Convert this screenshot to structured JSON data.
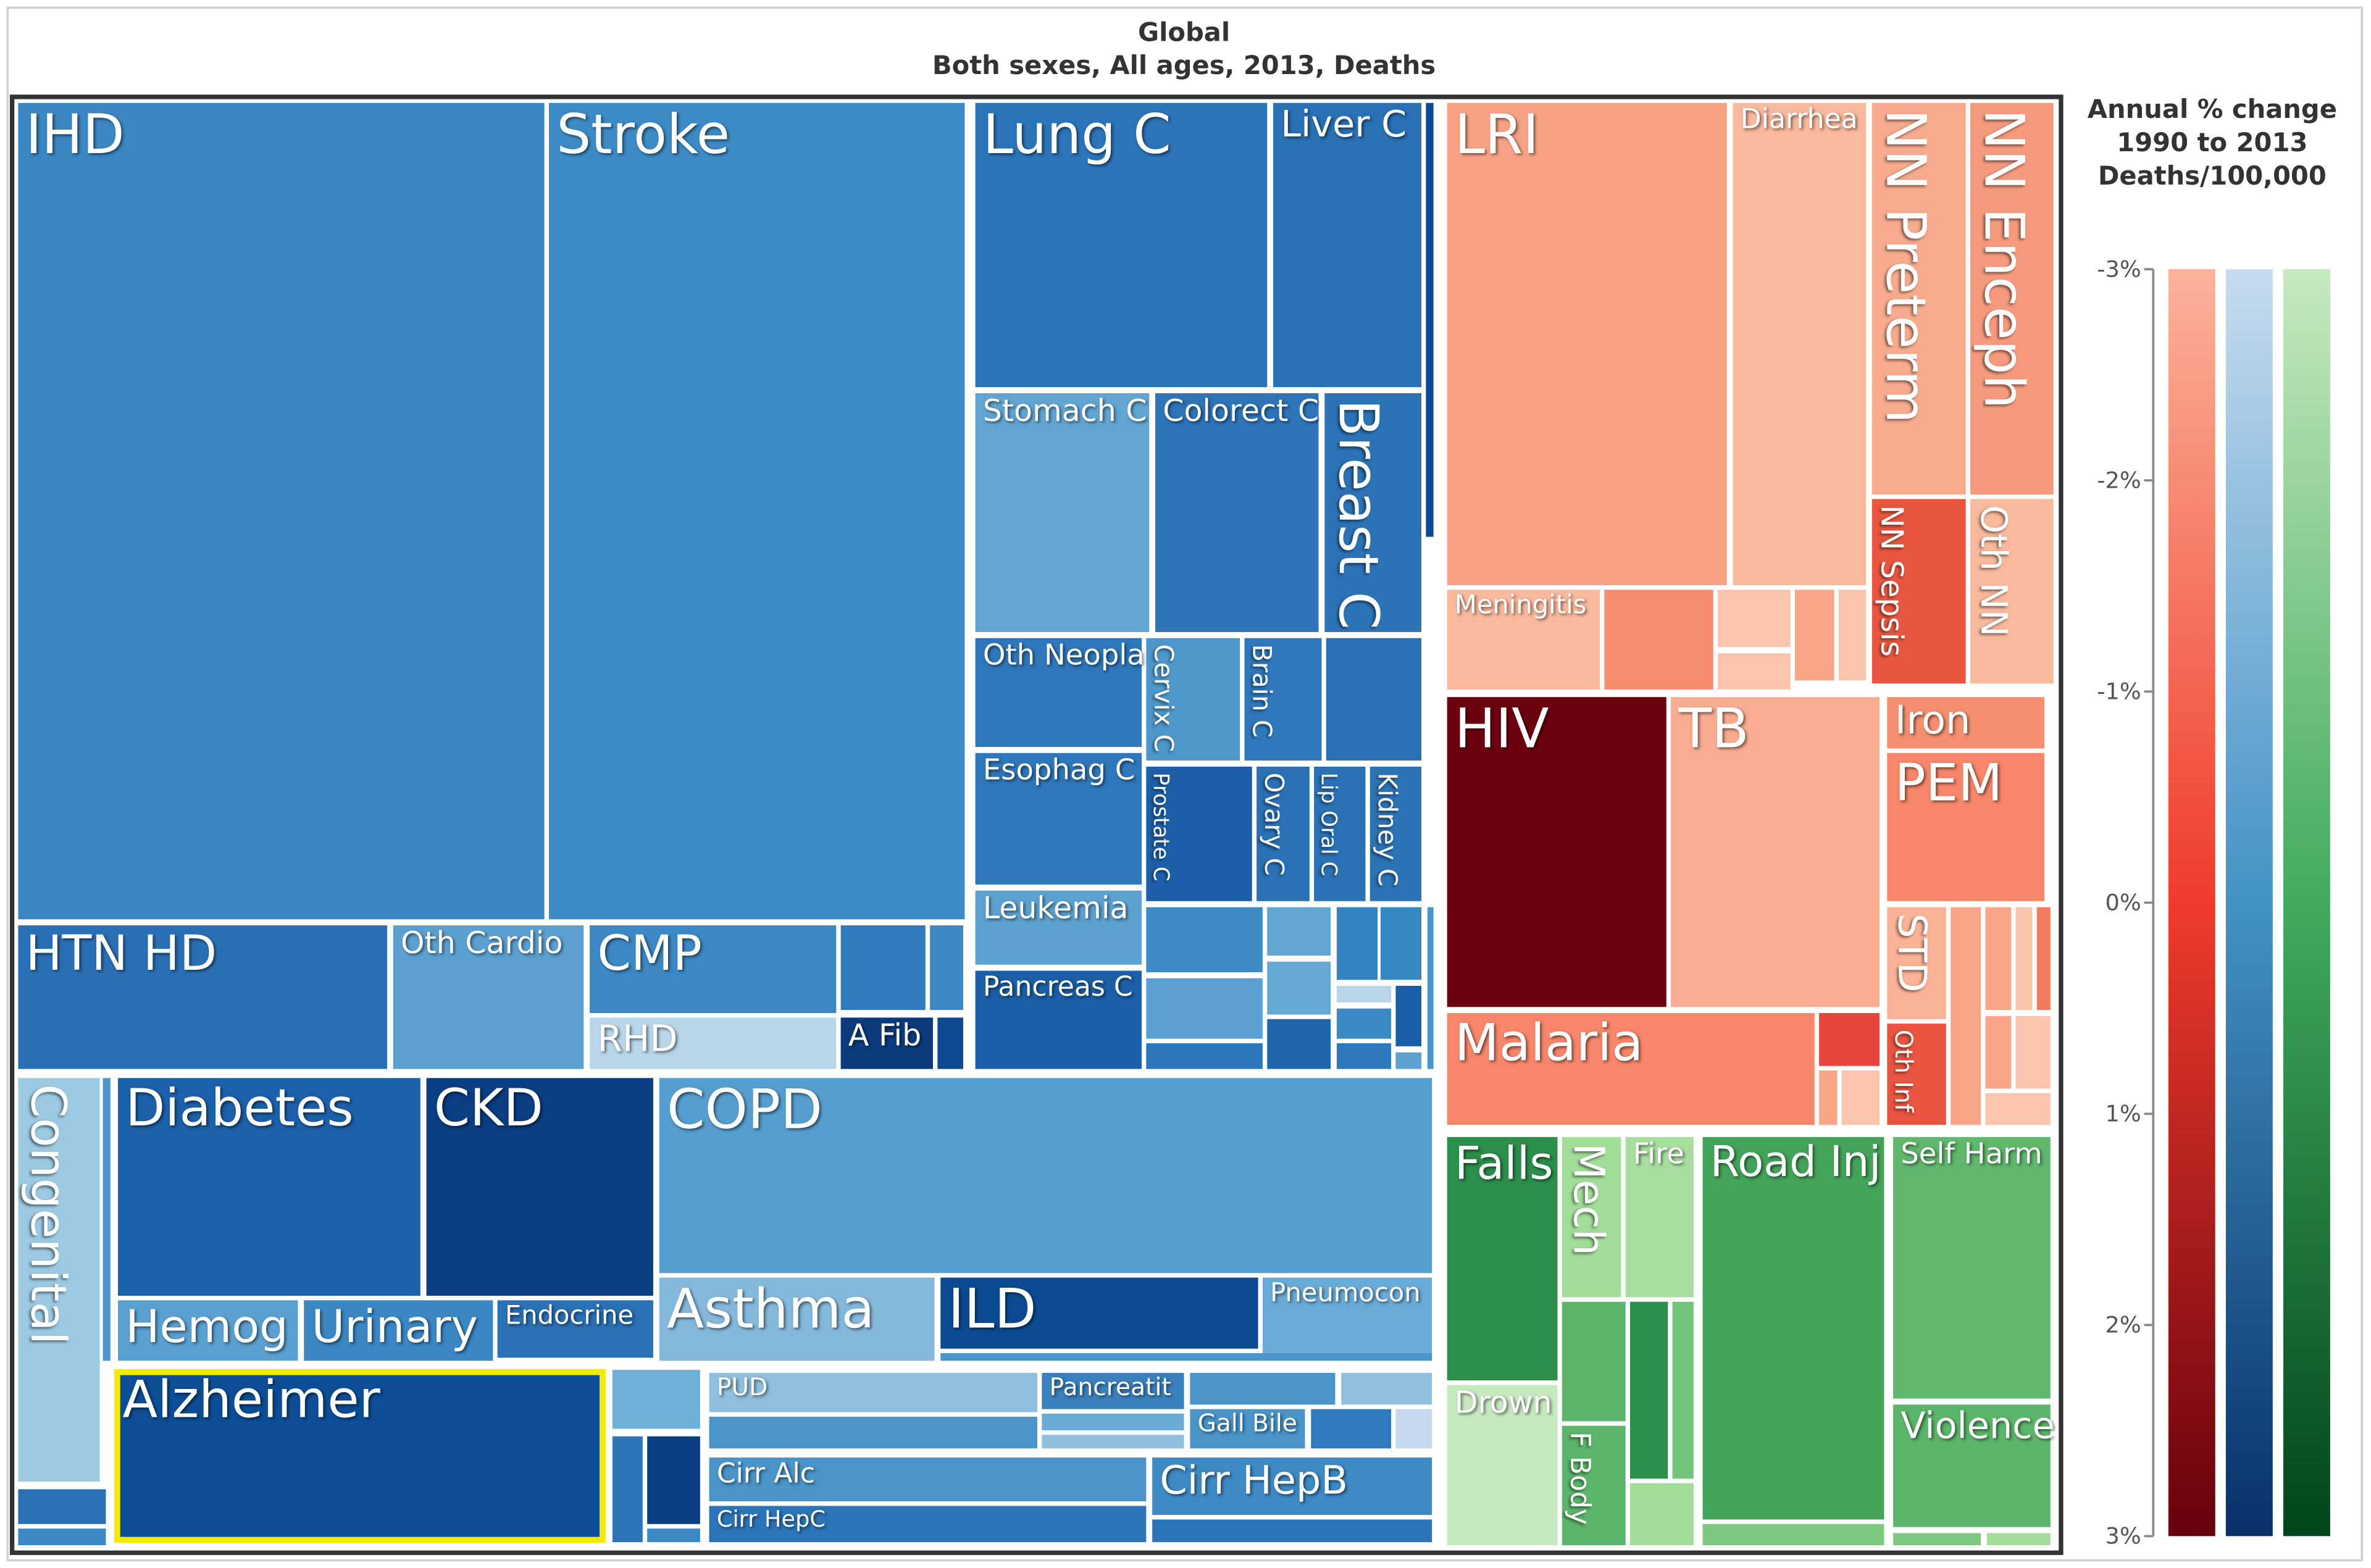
{
  "chart_data": {
    "type": "treemap",
    "title": "Global",
    "subtitle": "Both sexes, All ages, 2013, Deaths",
    "selected_cell": "Alzheimer",
    "highlight_color": "#f2ea00",
    "cells": [
      {
        "label": "IHD",
        "color": "#3a87c4"
      },
      {
        "label": "Stroke",
        "color": "#3d8bc6"
      },
      {
        "label": "HTN HD",
        "color": "#2a6fb4"
      },
      {
        "label": "Oth Cardio",
        "color": "#5ba0d0"
      },
      {
        "label": "CMP",
        "color": "#3c88c5"
      },
      {
        "label": "",
        "color": "#2f7bbd"
      },
      {
        "label": "",
        "color": "#3b88c4"
      },
      {
        "label": "RHD",
        "color": "#b9d6ea"
      },
      {
        "label": "A Fib",
        "color": "#0b3b7c"
      },
      {
        "label": "",
        "color": "#0d4a90"
      },
      {
        "label": "Lung C",
        "color": "#2c74b8"
      },
      {
        "label": "Liver C",
        "color": "#2a70b5"
      },
      {
        "label": "",
        "color": "#0b4a91"
      },
      {
        "label": "Stomach C",
        "color": "#62a5d2"
      },
      {
        "label": "Colorect C",
        "color": "#2d74b8"
      },
      {
        "label": "Breast C",
        "color": "#2b72b6"
      },
      {
        "label": "Oth Neopla",
        "color": "#2e77ba"
      },
      {
        "label": "Cervix C",
        "color": "#4d97cb"
      },
      {
        "label": "Brain C",
        "color": "#2e77ba"
      },
      {
        "label": "",
        "color": "#2a70b5"
      },
      {
        "label": "Esophag C",
        "color": "#2e77ba"
      },
      {
        "label": "Prostate C",
        "color": "#1c5fa8"
      },
      {
        "label": "Ovary C",
        "color": "#2a70b5"
      },
      {
        "label": "Lip Oral C",
        "color": "#2a70b5"
      },
      {
        "label": "Kidney C",
        "color": "#2b72b6"
      },
      {
        "label": "Leukemia",
        "color": "#5ca1d0"
      },
      {
        "label": "Pancreas C",
        "color": "#1a5fa7"
      },
      {
        "label": "",
        "color": "#3d8ac5"
      },
      {
        "label": "",
        "color": "#61a5d2"
      },
      {
        "label": "",
        "color": "#3383c1"
      },
      {
        "label": "",
        "color": "#3787c3"
      },
      {
        "label": "",
        "color": "#5ba0d0"
      },
      {
        "label": "",
        "color": "#65a8d4"
      },
      {
        "label": "",
        "color": "#b8d5ea"
      },
      {
        "label": "",
        "color": "#1b5ea8"
      },
      {
        "label": "",
        "color": "#3a88c4"
      },
      {
        "label": "",
        "color": "#2c76b9"
      },
      {
        "label": "",
        "color": "#1f66ad"
      },
      {
        "label": "",
        "color": "#2e79bb"
      },
      {
        "label": "",
        "color": "#5ca1d0"
      },
      {
        "label": "",
        "color": "#4a94c9"
      },
      {
        "label": "Congenital",
        "color": "#9ccae3"
      },
      {
        "label": "",
        "color": "#4a94c9"
      },
      {
        "label": "",
        "color": "#2a70b5"
      },
      {
        "label": "",
        "color": "#3b88c4"
      },
      {
        "label": "Diabetes",
        "color": "#1c60a9"
      },
      {
        "label": "CKD",
        "color": "#0a3d82"
      },
      {
        "label": "Hemog",
        "color": "#5aa0d0"
      },
      {
        "label": "Urinary",
        "color": "#3a87c4"
      },
      {
        "label": "Endocrine",
        "color": "#2a70b5"
      },
      {
        "label": "Alzheimer",
        "color": "#0d4d95"
      },
      {
        "label": "",
        "color": "#6fb0d8"
      },
      {
        "label": "",
        "color": "#2c74b8"
      },
      {
        "label": "",
        "color": "#0a3d82"
      },
      {
        "label": "",
        "color": "#3b88c4"
      },
      {
        "label": "COPD",
        "color": "#569ecf"
      },
      {
        "label": "Asthma",
        "color": "#84b9dc"
      },
      {
        "label": "ILD",
        "color": "#0b4a91"
      },
      {
        "label": "Pneumocon",
        "color": "#6aabd6"
      },
      {
        "label": "",
        "color": "#4a95ca"
      },
      {
        "label": "PUD",
        "color": "#8fbfdd"
      },
      {
        "label": "",
        "color": "#4a94c9"
      },
      {
        "label": "Pancreatit",
        "color": "#3a80bd"
      },
      {
        "label": "",
        "color": "#6aabd6"
      },
      {
        "label": "",
        "color": "#8fbfdd"
      },
      {
        "label": "",
        "color": "#4a94c9"
      },
      {
        "label": "",
        "color": "#8fbfdd"
      },
      {
        "label": "Gall Bile",
        "color": "#4a94c9"
      },
      {
        "label": "",
        "color": "#2f7bbd"
      },
      {
        "label": "",
        "color": "#c4d9ee"
      },
      {
        "label": "Cirr Alc",
        "color": "#4a94c9"
      },
      {
        "label": "Cirr HepC",
        "color": "#2c74b8"
      },
      {
        "label": "Cirr HepB",
        "color": "#3d8ac5"
      },
      {
        "label": "",
        "color": "#2c74b8"
      },
      {
        "label": "LRI",
        "color": "#f7a285"
      },
      {
        "label": "Diarrhea",
        "color": "#f9b99d"
      },
      {
        "label": "NN Preterm",
        "color": "#f8ab8e"
      },
      {
        "label": "NN Enceph",
        "color": "#f69a7e"
      },
      {
        "label": "NN Sepsis",
        "color": "#e8563f"
      },
      {
        "label": "Oth NN",
        "color": "#f9b99d"
      },
      {
        "label": "Meningitis",
        "color": "#f9b99d"
      },
      {
        "label": "",
        "color": "#f68b6e"
      },
      {
        "label": "",
        "color": "#fbc4ac"
      },
      {
        "label": "",
        "color": "#fbc4ac"
      },
      {
        "label": "",
        "color": "#f9a588"
      },
      {
        "label": "",
        "color": "#fbc4ac"
      },
      {
        "label": "HIV",
        "color": "#6b000f"
      },
      {
        "label": "TB",
        "color": "#f9ac91"
      },
      {
        "label": "Iron",
        "color": "#f58f70"
      },
      {
        "label": "PEM",
        "color": "#f7866a"
      },
      {
        "label": "STD",
        "color": "#fbb398"
      },
      {
        "label": "Oth Inf",
        "color": "#e8543f"
      },
      {
        "label": "",
        "color": "#f9a587"
      },
      {
        "label": "",
        "color": "#f9a587"
      },
      {
        "label": "",
        "color": "#fbc4ac"
      },
      {
        "label": "",
        "color": "#f47a5d"
      },
      {
        "label": "",
        "color": "#f9a587"
      },
      {
        "label": "",
        "color": "#fbc4ac"
      },
      {
        "label": "",
        "color": "#fbc4ac"
      },
      {
        "label": "Malaria",
        "color": "#f7866a"
      },
      {
        "label": "",
        "color": "#e8453a"
      },
      {
        "label": "",
        "color": "#f9a587"
      },
      {
        "label": "",
        "color": "#fbc4ac"
      },
      {
        "label": "Falls",
        "color": "#2b8e4a"
      },
      {
        "label": "Drown",
        "color": "#c7e9c0"
      },
      {
        "label": "Mech",
        "color": "#a3dd9a"
      },
      {
        "label": "Fire",
        "color": "#a8dfa0"
      },
      {
        "label": "",
        "color": "#5bb56a"
      },
      {
        "label": "",
        "color": "#2b8e4a"
      },
      {
        "label": "",
        "color": "#72c47a"
      },
      {
        "label": "F Body",
        "color": "#5bb56a"
      },
      {
        "label": "",
        "color": "#a3dd9a"
      },
      {
        "label": "Road Inj",
        "color": "#43a459"
      },
      {
        "label": "",
        "color": "#7dc87f"
      },
      {
        "label": "Self Harm",
        "color": "#5fb86d"
      },
      {
        "label": "Violence",
        "color": "#5bb56a"
      },
      {
        "label": "",
        "color": "#7dc87f"
      },
      {
        "label": "",
        "color": "#a3dd9a"
      }
    ],
    "legend": {
      "title_lines": [
        "Annual % change",
        "1990 to 2013",
        "Deaths/100,000"
      ],
      "ticks": [
        "-3%",
        "-2%",
        "-1%",
        "0%",
        "1%",
        "2%",
        "3%"
      ],
      "range": [
        -3,
        3
      ],
      "scales": [
        {
          "colors": [
            "#fbb39a",
            "#ef3b2c",
            "#67000d"
          ]
        },
        {
          "colors": [
            "#c6dbef",
            "#4292c6",
            "#08306b"
          ]
        },
        {
          "colors": [
            "#c7e9c0",
            "#41ab5d",
            "#00441b"
          ]
        }
      ]
    }
  }
}
